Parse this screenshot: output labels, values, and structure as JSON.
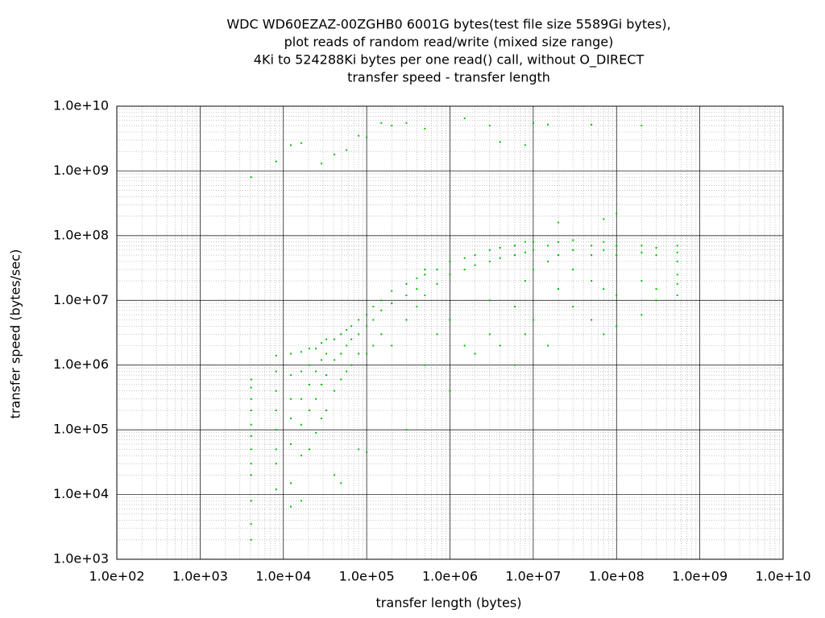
{
  "chart_data": {
    "type": "scatter",
    "title": [
      "WDC WD60EZAZ-00ZGHB0 6001G bytes(test file size 5589Gi bytes),",
      "plot reads of random read/write (mixed size range)",
      "4Ki to 524288Ki bytes per one read() call, without O_DIRECT",
      "transfer speed - transfer length"
    ],
    "xlabel": "transfer length (bytes)",
    "ylabel": "transfer speed (bytes/sec)",
    "log_x": true,
    "log_y": true,
    "grid": true,
    "color": "#00c000",
    "xlim": [
      100.0,
      10000000000.0
    ],
    "ylim": [
      1000.0,
      10000000000.0
    ],
    "xticks": [
      {
        "value": 100.0,
        "label": "1.0e+02"
      },
      {
        "value": 1000.0,
        "label": "1.0e+03"
      },
      {
        "value": 10000.0,
        "label": "1.0e+04"
      },
      {
        "value": 100000.0,
        "label": "1.0e+05"
      },
      {
        "value": 1000000.0,
        "label": "1.0e+06"
      },
      {
        "value": 10000000.0,
        "label": "1.0e+07"
      },
      {
        "value": 100000000.0,
        "label": "1.0e+08"
      },
      {
        "value": 1000000000.0,
        "label": "1.0e+09"
      },
      {
        "value": 10000000000.0,
        "label": "1.0e+10"
      }
    ],
    "yticks": [
      {
        "value": 1000.0,
        "label": "1.0e+03"
      },
      {
        "value": 10000.0,
        "label": "1.0e+04"
      },
      {
        "value": 100000.0,
        "label": "1.0e+05"
      },
      {
        "value": 1000000.0,
        "label": "1.0e+06"
      },
      {
        "value": 10000000.0,
        "label": "1.0e+07"
      },
      {
        "value": 100000000.0,
        "label": "1.0e+08"
      },
      {
        "value": 1000000000.0,
        "label": "1.0e+09"
      },
      {
        "value": 10000000000.0,
        "label": "1.0e+10"
      }
    ],
    "x": [
      4096,
      4096,
      4096,
      4096,
      4096,
      4096,
      4096,
      4096,
      4096,
      4096,
      4096,
      4096,
      4096,
      8192,
      8192,
      8192,
      8192,
      8192,
      8192,
      8192,
      8192,
      8192,
      12288,
      12288,
      12288,
      12288,
      12288,
      12288,
      12288,
      12288,
      16384,
      16384,
      16384,
      16384,
      16384,
      16384,
      16384,
      20480,
      20480,
      20480,
      20480,
      20480,
      24576,
      24576,
      24576,
      24576,
      28672,
      28672,
      28672,
      28672,
      28672,
      32768,
      32768,
      32768,
      32768,
      40960,
      40960,
      40960,
      40960,
      40960,
      49152,
      49152,
      49152,
      49152,
      57344,
      57344,
      57344,
      57344,
      65536,
      65536,
      65536,
      80000,
      80000,
      80000,
      80000,
      80000,
      100000,
      100000,
      100000,
      100000,
      100000,
      120000,
      120000,
      120000,
      150000,
      150000,
      150000,
      150000,
      200000,
      200000,
      200000,
      200000,
      300000,
      300000,
      300000,
      300000,
      300000,
      400000,
      400000,
      400000,
      500000,
      500000,
      500000,
      500000,
      500000,
      700000,
      700000,
      700000,
      1000000,
      1000000,
      1000000,
      1000000,
      1500000,
      1500000,
      1500000,
      1500000,
      2000000,
      2000000,
      2000000,
      3000000,
      3000000,
      3000000,
      3000000,
      3000000,
      4000000,
      4000000,
      4000000,
      4000000,
      6000000,
      6000000,
      6000000,
      6000000,
      8000000,
      8000000,
      8000000,
      8000000,
      8000000,
      10000000,
      10000000,
      10000000,
      10000000,
      10000000,
      15000000,
      15000000,
      15000000,
      15000000,
      20000000,
      20000000,
      20000000,
      20000000,
      30000000,
      30000000,
      30000000,
      30000000,
      50000000,
      50000000,
      50000000,
      50000000,
      50000000,
      70000000,
      70000000,
      70000000,
      70000000,
      70000000,
      100000000,
      100000000,
      100000000,
      100000000,
      100000000,
      200000000,
      200000000,
      200000000,
      200000000,
      200000000,
      300000000,
      300000000,
      300000000,
      300000000,
      536870912,
      536870912,
      536870912,
      536870912,
      536870912,
      536870912
    ],
    "values": [
      2000,
      3500,
      8000,
      20000,
      30000,
      50000,
      80000,
      120000,
      200000,
      300000,
      450000,
      600000,
      800000000.0,
      12000,
      30000,
      50000,
      100000,
      200000,
      400000,
      800000,
      1400000,
      1400000000.0,
      6500,
      15000,
      60000,
      150000,
      300000,
      700000,
      1500000,
      2500000000.0,
      8000,
      40000,
      120000,
      300000,
      800000,
      1600000,
      2700000000.0,
      50000,
      200000,
      500000,
      1000000,
      1800000,
      90000,
      300000,
      800000,
      1800000,
      150000,
      500000,
      1200000,
      2200000,
      1300000000.0,
      200000,
      700000,
      1500000,
      2500000,
      20000,
      400000,
      1200000,
      2500000,
      1800000000.0,
      15000,
      600000,
      1500000,
      3000000,
      800000,
      2000000,
      3500000,
      2100000000.0,
      1000000,
      2500000,
      4000000,
      50000,
      1500000,
      3000000,
      5000000,
      3500000000.0,
      45000,
      1500000,
      4000000,
      6000000,
      3300000000.0,
      2000000,
      5000000,
      8000000,
      3000000,
      7000000,
      10000000,
      5500000000.0,
      2000000,
      9000000,
      14000000,
      5000000000.0,
      100000,
      5000000,
      12000000,
      18000000,
      5500000000.0,
      8000000.0,
      15000000.0,
      22000000.0,
      1000000.0,
      12000000.0,
      25000000.0,
      30000000.0,
      4500000000.0,
      3000000.0,
      18000000.0,
      30000000.0,
      400000.0,
      5000000.0,
      25000000.0,
      40000000.0,
      2000000.0,
      30000000.0,
      45000000.0,
      6500000000.0,
      1500000.0,
      35000000.0,
      50000000.0,
      3000000.0,
      10000000.0,
      40000000.0,
      60000000.0,
      5000000000.0,
      2000000.0,
      45000000.0,
      65000000.0,
      2800000000.0,
      1000000.0,
      8000000.0,
      50000000.0,
      70000000.0,
      3000000.0,
      20000000.0,
      55000000.0,
      80000000.0,
      2500000000.0,
      5000000.0,
      30000000.0,
      60000000.0,
      80000000.0,
      5500000000.0,
      2000000.0,
      40000000.0,
      70000000.0,
      5200000000.0,
      15000000.0,
      50000000.0,
      80000000.0,
      160000000.0,
      8000000.0,
      30000000.0,
      60000000.0,
      85000000.0,
      5000000.0,
      20000000.0,
      50000000.0,
      70000000.0,
      5200000000.0,
      3000000.0,
      15000000.0,
      60000000.0,
      80000000.0,
      180000000.0,
      4000000.0,
      12000000.0,
      50000000.0,
      70000000.0,
      220000000.0,
      6000000.0,
      20000000.0,
      55000000.0,
      70000000.0,
      5000000000.0,
      10000000.0,
      15000000.0,
      50000000.0,
      65000000.0,
      12000000.0,
      18000000.0,
      25000000.0,
      40000000.0,
      55000000.0,
      70000000.0
    ]
  }
}
